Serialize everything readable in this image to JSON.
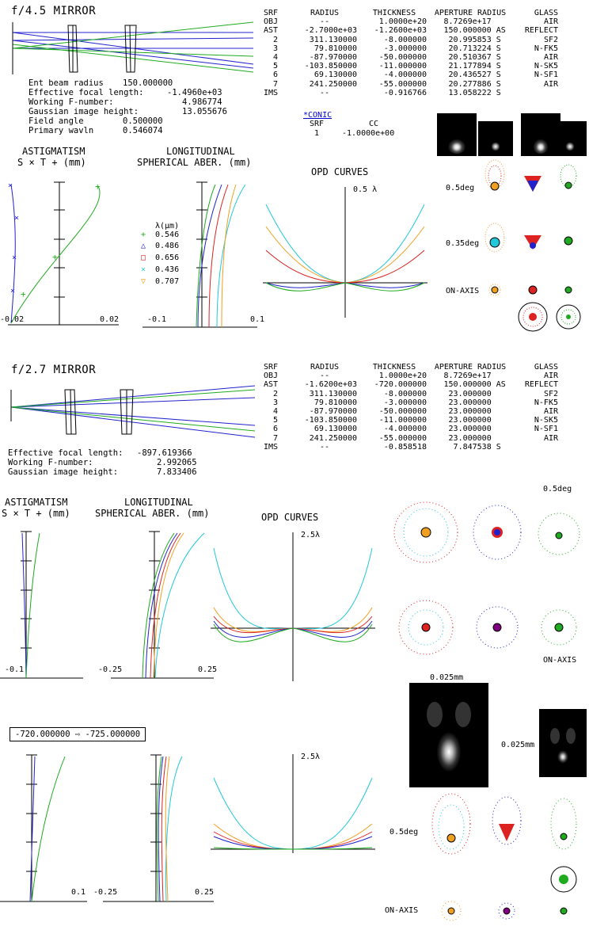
{
  "design1": {
    "title": "f/4.5 MIRROR",
    "params": [
      {
        "label": "Ent beam radius",
        "value": "150.000000"
      },
      {
        "label": "Effective focal length:",
        "value": "-1.4960e+03"
      },
      {
        "label": "Working F-number:",
        "value": "4.986774"
      },
      {
        "label": "Gaussian image height:",
        "value": "13.055676"
      },
      {
        "label": "Field angle",
        "value": "0.500000"
      },
      {
        "label": "Primary wavln",
        "value": "0.546074"
      }
    ],
    "table": {
      "headers": [
        "SRF",
        "RADIUS",
        "THICKNESS",
        "APERTURE RADIUS",
        "GLASS"
      ],
      "rows": [
        [
          "OBJ",
          "--",
          "1.0000e+20",
          "8.7269e+17",
          "",
          "AIR"
        ],
        [
          "AST",
          "-2.7000e+03",
          "-1.2600e+03",
          "150.000000",
          "AS",
          "REFLECT"
        ],
        [
          "2",
          "311.130000",
          "-8.000000",
          "20.995853",
          "S",
          "SF2"
        ],
        [
          "3",
          "79.810000",
          "-3.000000",
          "20.713224",
          "S",
          "N-FK5"
        ],
        [
          "4",
          "-87.970000",
          "-50.000000",
          "20.510367",
          "S",
          "AIR"
        ],
        [
          "5",
          "-103.850000",
          "-11.000000",
          "21.177894",
          "S",
          "N-SK5"
        ],
        [
          "6",
          "69.130000",
          "-4.000000",
          "20.436527",
          "S",
          "N-SF1"
        ],
        [
          "7",
          "241.250000",
          "-55.000000",
          "20.277886",
          "S",
          "AIR"
        ],
        [
          "IMS",
          "--",
          "-0.916766",
          "13.058222",
          "S",
          ""
        ]
      ]
    },
    "conic": {
      "link": "*CONIC",
      "h_srf": "SRF",
      "h_cc": "CC",
      "srf": "1",
      "cc": "-1.0000e+00"
    },
    "astig": {
      "title": "ASTIGMATISM",
      "legend": "S × T + (mm)",
      "xmin": "-0.02",
      "xmax": "0.02"
    },
    "spher": {
      "title1": "LONGITUDINAL",
      "title2": "SPHERICAL ABER. (mm)",
      "xmin": "-0.1",
      "xmax": "0.1"
    },
    "opd": {
      "title": "OPD CURVES",
      "scale": "0.5 λ"
    },
    "spot_labels": [
      "0.5deg",
      "0.35deg",
      "ON-AXIS"
    ]
  },
  "wavelengths": {
    "header": "λ(µm)",
    "items": [
      {
        "value": "0.546",
        "color": "#1faa1f",
        "marker": "plus"
      },
      {
        "value": "0.486",
        "color": "#2222cc",
        "marker": "triangle"
      },
      {
        "value": "0.656",
        "color": "#dd2222",
        "marker": "square"
      },
      {
        "value": "0.436",
        "color": "#22c8d8",
        "marker": "x"
      },
      {
        "value": "0.707",
        "color": "#f0a020",
        "marker": "tri-down"
      }
    ]
  },
  "design2": {
    "title": "f/2.7 MIRROR",
    "params": [
      {
        "label": "Effective focal length:",
        "value": "-897.619366"
      },
      {
        "label": "Working F-number:",
        "value": "2.992065"
      },
      {
        "label": "Gaussian image height:",
        "value": "7.833406"
      }
    ],
    "table": {
      "headers": [
        "SRF",
        "RADIUS",
        "THICKNESS",
        "APERTURE RADIUS",
        "GLASS"
      ],
      "rows": [
        [
          "OBJ",
          "--",
          "1.0000e+20",
          "8.7269e+17",
          "",
          "AIR"
        ],
        [
          "AST",
          "-1.6200e+03",
          "-720.000000",
          "150.000000",
          "AS",
          "REFLECT"
        ],
        [
          "2",
          "311.130000",
          "-8.000000",
          "23.000000",
          "",
          "SF2"
        ],
        [
          "3",
          "79.810000",
          "-3.000000",
          "23.000000",
          "",
          "N-FK5"
        ],
        [
          "4",
          "-87.970000",
          "-50.000000",
          "23.000000",
          "",
          "AIR"
        ],
        [
          "5",
          "-103.850000",
          "-11.000000",
          "23.000000",
          "",
          "N-SK5"
        ],
        [
          "6",
          "69.130000",
          "-4.000000",
          "23.000000",
          "",
          "N-SF1"
        ],
        [
          "7",
          "241.250000",
          "-55.000000",
          "23.000000",
          "",
          "AIR"
        ],
        [
          "IMS",
          "--",
          "-0.858518",
          "7.847538",
          "S",
          ""
        ]
      ]
    },
    "astig": {
      "title": "ASTIGMATISM",
      "legend": "S × T + (mm)",
      "xmin": "-0.1"
    },
    "spher": {
      "title1": "LONGITUDINAL",
      "title2": "SPHERICAL ABER. (mm)",
      "xmin": "-0.25",
      "xmax": "0.25"
    },
    "opd": {
      "title": "OPD CURVES",
      "scale": "2.5λ"
    },
    "spot_labels": [
      "0.5deg",
      "ON-AXIS"
    ]
  },
  "design3": {
    "change_from": "-720.000000",
    "change_to": "-725.000000",
    "astig": {
      "xmax": "0.1"
    },
    "spher": {
      "xmin": "-0.25",
      "xmax": "0.25"
    },
    "opd": {
      "scale": "2.5λ"
    },
    "psf_scale": "0.025mm",
    "psf_scale2": "0.025mm",
    "spot_labels": [
      "0.5deg",
      "ON-AXIS"
    ]
  }
}
